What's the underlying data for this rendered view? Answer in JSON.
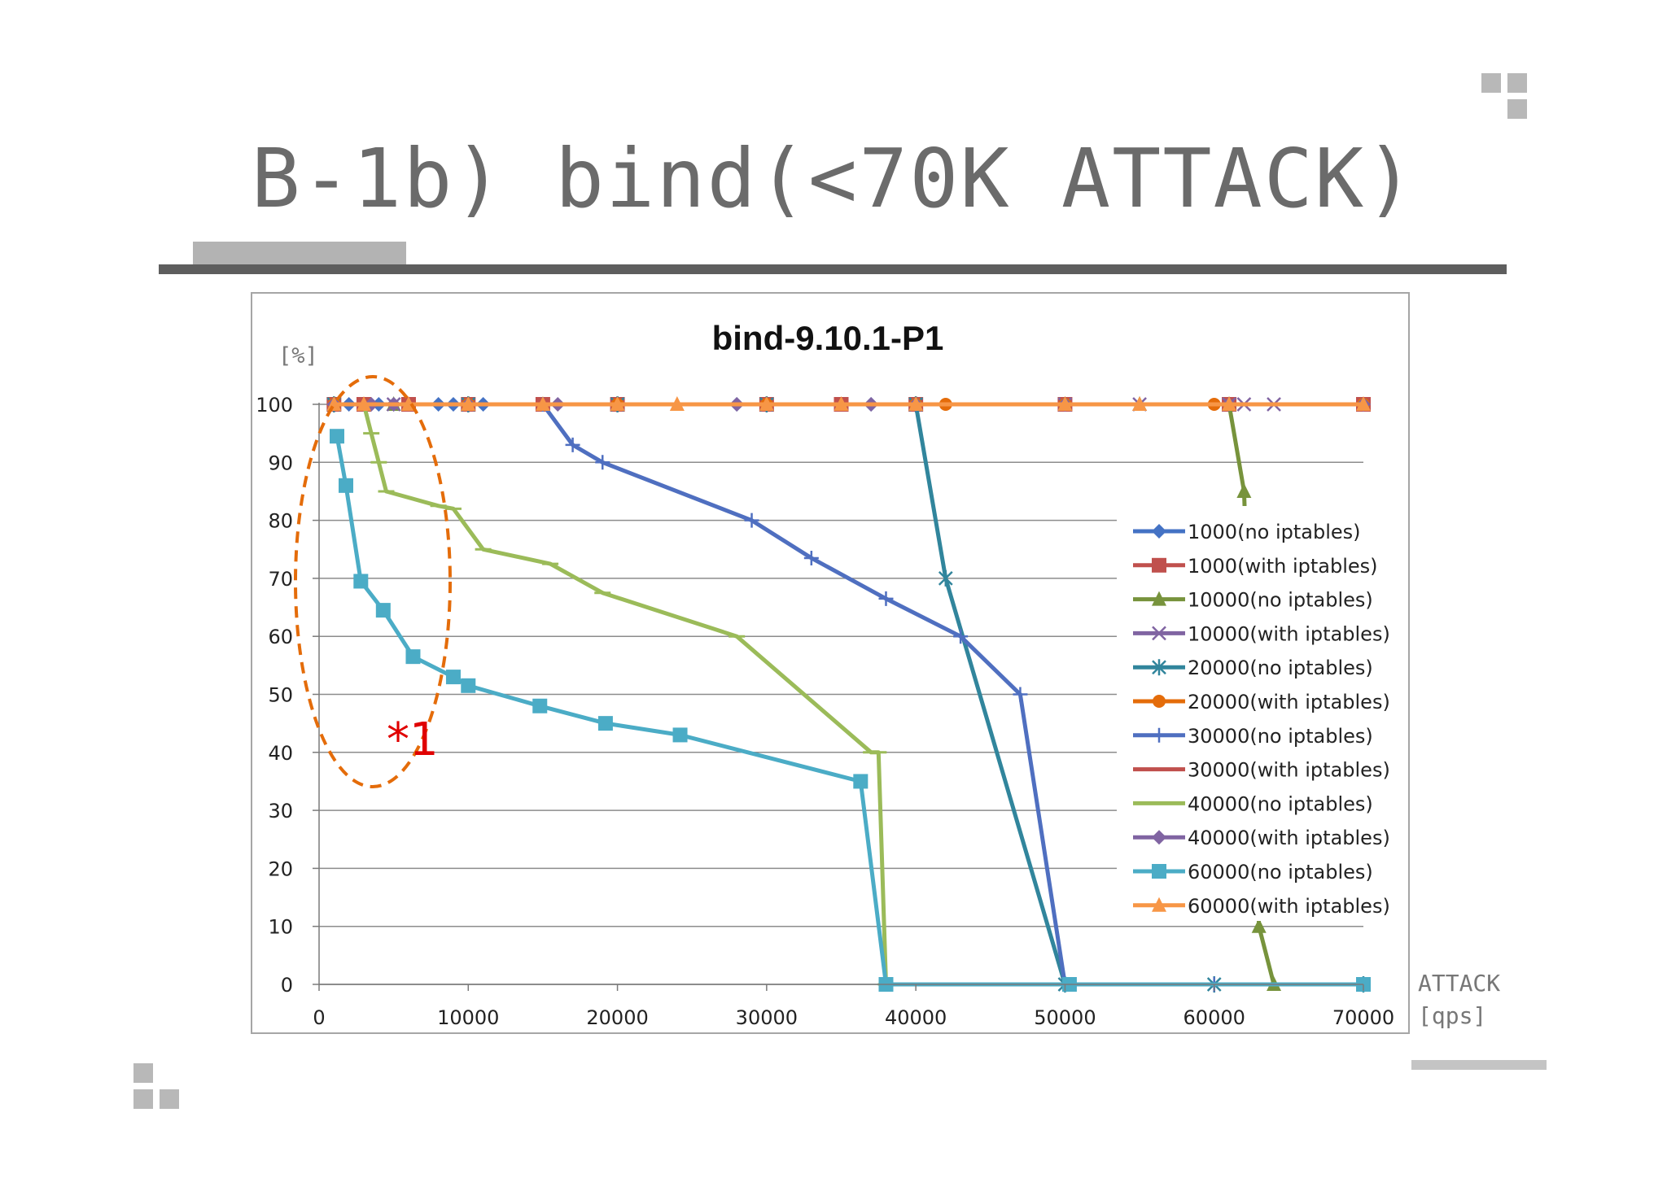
{
  "slide": {
    "title": "B-1b) bind(<70K ATTACK)",
    "annotation": "*1",
    "ylabel": "[%]",
    "xlabel_line1": "ATTACK",
    "xlabel_line2": "[qps]"
  },
  "chart_data": {
    "type": "line",
    "title": "bind-9.10.1-P1",
    "xlim": [
      0,
      70000
    ],
    "ylim": [
      0,
      100
    ],
    "xticks": [
      0,
      10000,
      20000,
      30000,
      40000,
      50000,
      60000,
      70000
    ],
    "yticks": [
      0,
      10,
      20,
      30,
      40,
      50,
      60,
      70,
      80,
      90,
      100
    ],
    "grid": "horizontal",
    "legend_position": "right",
    "series": [
      {
        "name": "1000(no iptables)",
        "color": "#4472c4",
        "marker": "diamond",
        "x": [
          1000,
          2000,
          3000,
          4000,
          5000,
          6000,
          8000,
          9000,
          10000,
          11000,
          15000,
          20000,
          28000,
          30000,
          35000,
          37000,
          40000,
          50000,
          61000,
          70000
        ],
        "y": [
          100,
          100,
          100,
          100,
          100,
          100,
          100,
          100,
          100,
          100,
          100,
          100,
          100,
          100,
          100,
          100,
          100,
          100,
          100,
          100
        ]
      },
      {
        "name": "1000(with iptables)",
        "color": "#c0504d",
        "marker": "square",
        "x": [
          1000,
          3000,
          6000,
          10000,
          15000,
          20000,
          30000,
          35000,
          40000,
          50000,
          61000,
          70000
        ],
        "y": [
          100,
          100,
          100,
          100,
          100,
          100,
          100,
          100,
          100,
          100,
          100,
          100
        ]
      },
      {
        "name": "10000(no iptables)",
        "color": "#77933c",
        "marker": "triangle",
        "x": [
          1000,
          5000,
          10000,
          20000,
          30000,
          40000,
          50000,
          55000,
          61000,
          62000,
          63000,
          64000,
          70000
        ],
        "y": [
          100,
          100,
          100,
          100,
          100,
          100,
          100,
          100,
          100,
          85,
          10,
          0,
          0
        ]
      },
      {
        "name": "10000(with iptables)",
        "color": "#8064a2",
        "marker": "x",
        "x": [
          1000,
          5000,
          10000,
          20000,
          30000,
          40000,
          50000,
          55000,
          61000,
          62000,
          64000
        ],
        "y": [
          100,
          100,
          100,
          100,
          100,
          100,
          100,
          100,
          100,
          100,
          100
        ]
      },
      {
        "name": "20000(no iptables)",
        "color": "#31859c",
        "marker": "star",
        "x": [
          1000,
          10000,
          20000,
          30000,
          40000,
          42000,
          50000,
          60000,
          70000
        ],
        "y": [
          100,
          100,
          100,
          100,
          100,
          70,
          0,
          0,
          0
        ]
      },
      {
        "name": "20000(with iptables)",
        "color": "#e46c0a",
        "marker": "circle",
        "x": [
          1000,
          10000,
          20000,
          30000,
          40000,
          42000,
          50000,
          60000,
          70000
        ],
        "y": [
          100,
          100,
          100,
          100,
          100,
          100,
          100,
          100,
          100
        ]
      },
      {
        "name": "30000(no iptables)",
        "color": "#4f6fc0",
        "marker": "plus",
        "x": [
          15000,
          17000,
          19000,
          29000,
          33000,
          38000,
          43000,
          47000,
          50000,
          60000,
          70000
        ],
        "y": [
          100,
          93,
          90,
          80,
          73.5,
          66.5,
          60,
          50,
          0,
          0,
          0
        ]
      },
      {
        "name": "30000(with iptables)",
        "color": "#c0504d",
        "marker": "none",
        "x": [
          1000,
          70000
        ],
        "y": [
          100,
          100
        ]
      },
      {
        "name": "40000(no iptables)",
        "color": "#9bbb59",
        "marker": "dash",
        "x": [
          3000,
          3500,
          4000,
          4500,
          8000,
          9000,
          11000,
          15500,
          19000,
          28000,
          37000,
          37500,
          38000,
          40000
        ],
        "y": [
          100,
          95,
          90,
          85,
          82.5,
          82,
          75,
          72.5,
          67.5,
          60,
          40,
          40,
          0,
          0
        ]
      },
      {
        "name": "40000(with iptables)",
        "color": "#8064a2",
        "marker": "diamond",
        "x": [
          1000,
          3500,
          5000,
          10000,
          16000,
          28000,
          37000,
          40000,
          50000,
          61000,
          70000
        ],
        "y": [
          100,
          100,
          100,
          100,
          100,
          100,
          100,
          100,
          100,
          100,
          100
        ]
      },
      {
        "name": "60000(no iptables)",
        "color": "#4bacc6",
        "marker": "square",
        "x": [
          1200,
          1800,
          2800,
          4300,
          6300,
          9000,
          10000,
          14800,
          19200,
          24200,
          36300,
          38000,
          50300,
          70000
        ],
        "y": [
          94.5,
          86,
          69.5,
          64.5,
          56.5,
          53,
          51.5,
          48,
          45,
          43,
          35,
          0,
          0,
          0
        ]
      },
      {
        "name": "60000(with iptables)",
        "color": "#f79646",
        "marker": "triangle",
        "x": [
          1000,
          3000,
          6000,
          10000,
          15000,
          20000,
          24000,
          30000,
          35000,
          40000,
          50000,
          55000,
          61000,
          70000
        ],
        "y": [
          100,
          100,
          100,
          100,
          100,
          100,
          100,
          100,
          100,
          100,
          100,
          100,
          100,
          100
        ]
      }
    ]
  }
}
